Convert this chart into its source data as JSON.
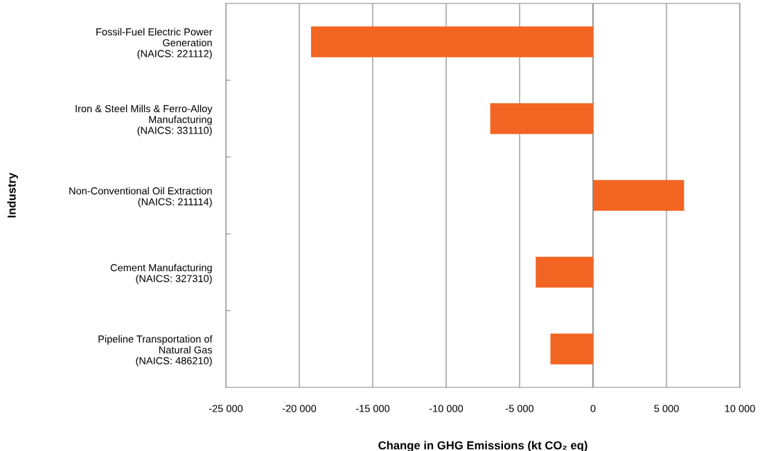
{
  "chart_data": {
    "type": "bar",
    "orientation": "horizontal",
    "xlabel": "Change in GHG Emissions (kt CO₂ eq)",
    "ylabel": "Industry",
    "categories": [
      "Fossil-Fuel Electric Power\nGeneration\n(NAICS: 221112)",
      "Iron & Steel Mills & Ferro-Alloy\nManufacturing\n(NAICS: 331110)",
      "Non-Conventional Oil Extraction\n(NAICS: 211114)",
      "Cement Manufacturing\n(NAICS: 327310)",
      "Pipeline Transportation of\nNatural Gas\n(NAICS: 486210)"
    ],
    "values": [
      -19200,
      -7000,
      6200,
      -3900,
      -2900
    ],
    "color": "#f26522",
    "xlim": [
      -25000,
      10000
    ],
    "xticks": [
      {
        "value": -25000,
        "label": "-25 000"
      },
      {
        "value": -20000,
        "label": "-20 000"
      },
      {
        "value": -15000,
        "label": "-15 000"
      },
      {
        "value": -10000,
        "label": "-10 000"
      },
      {
        "value": -5000,
        "label": "-5 000"
      },
      0,
      {
        "value": 5000,
        "label": "5 000"
      },
      {
        "value": 10000,
        "label": "10 000"
      }
    ],
    "grid": "x"
  }
}
